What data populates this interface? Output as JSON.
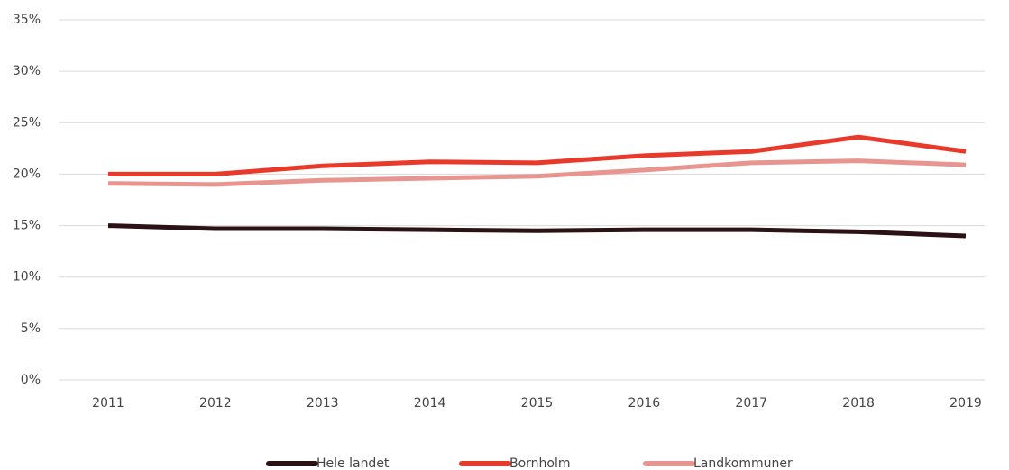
{
  "chart_data": {
    "type": "line",
    "categories": [
      "2011",
      "2012",
      "2013",
      "2014",
      "2015",
      "2016",
      "2017",
      "2018",
      "2019"
    ],
    "series": [
      {
        "name": "Hele landet",
        "color": "#2a1215",
        "values": [
          15.0,
          14.7,
          14.7,
          14.6,
          14.5,
          14.6,
          14.6,
          14.4,
          14.0
        ]
      },
      {
        "name": "Bornholm",
        "color": "#e8392b",
        "values": [
          20.0,
          20.0,
          20.8,
          21.2,
          21.1,
          21.8,
          22.2,
          23.6,
          22.2
        ]
      },
      {
        "name": "Landkommuner",
        "color": "#e89590",
        "values": [
          19.1,
          19.0,
          19.4,
          19.6,
          19.8,
          20.4,
          21.1,
          21.3,
          20.9
        ]
      }
    ],
    "ylim": [
      0,
      35
    ],
    "yticks": [
      {
        "value": 0,
        "label": "0%"
      },
      {
        "value": 5,
        "label": "5%"
      },
      {
        "value": 10,
        "label": "10%"
      },
      {
        "value": 15,
        "label": "15%"
      },
      {
        "value": 20,
        "label": "20%"
      },
      {
        "value": 25,
        "label": "25%"
      },
      {
        "value": 30,
        "label": "30%"
      },
      {
        "value": 35,
        "label": "35%"
      }
    ],
    "grid": true,
    "legend": "bottom"
  }
}
